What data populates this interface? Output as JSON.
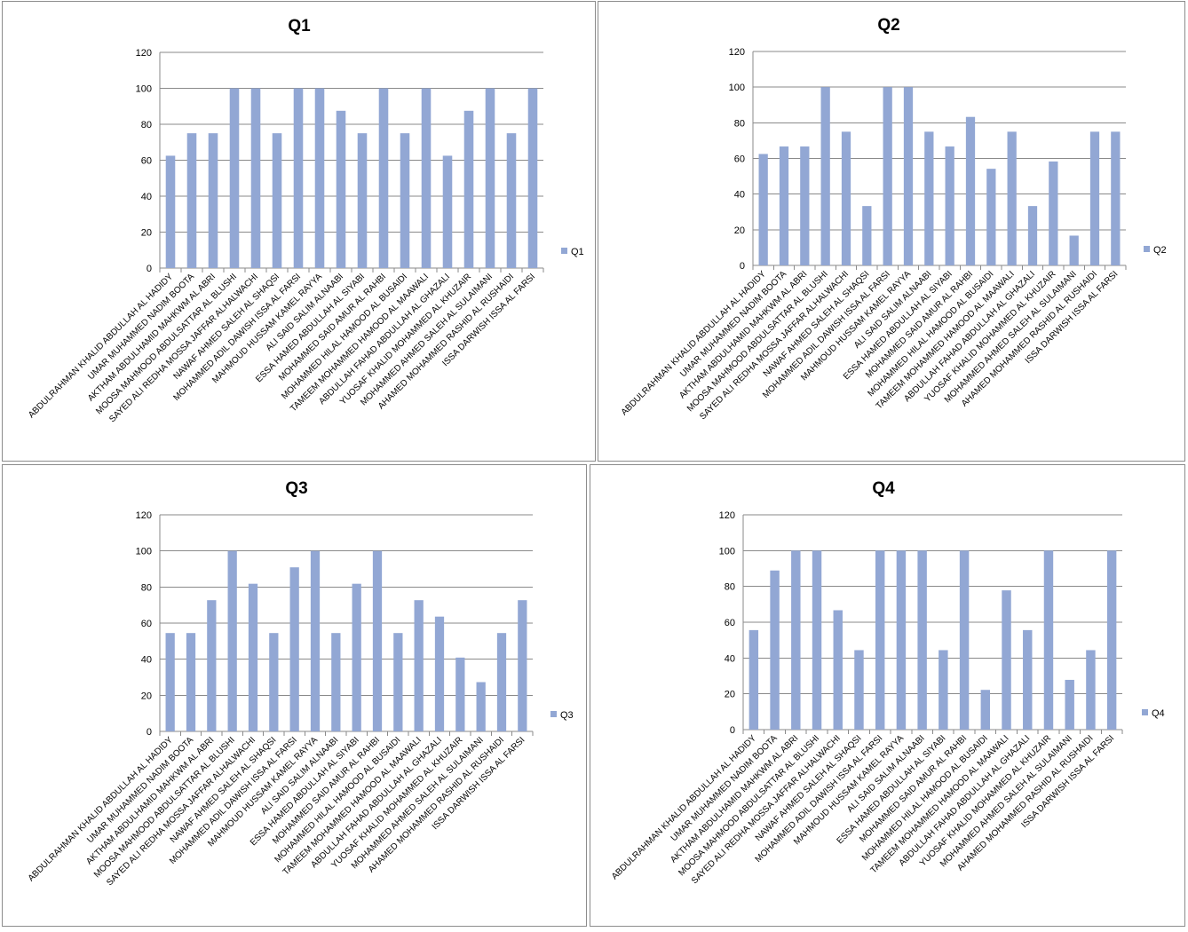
{
  "colors": {
    "bar": "#92A7D4",
    "grid": "#8a8a8a",
    "axis": "#8a8a8a"
  },
  "chart_data": [
    {
      "type": "bar",
      "title": "Q1",
      "ylim": [
        0,
        120
      ],
      "yticks": [
        0,
        20,
        40,
        60,
        80,
        100,
        120
      ],
      "grid": true,
      "legend_position": "right",
      "categories": [
        "ABDULRAHMAN KHALID ABDULLAH AL HADIDY",
        "UMAR MUHAMMED NADIM BOOTA",
        "AKTHAM ABDULHAMID MAHKWM AL ABRI",
        "MOOSA MAHMOOD ABDULSATTAR AL BLUSHI",
        "SAYED ALI REDHA MOSSA JAFFAR ALHALWACHI",
        "NAWAF AHMED SALEH AL SHAQSI",
        "MOHAMMED ADIL DAWISH ISSA AL FARSI",
        "MAHMOUD HUSSAM KAMEL RAYYA",
        "ALI SAID SALIM ALNAABI",
        "ESSA HAMED ABDULLAH AL SIYABI",
        "MOHAMMED SAID AMUR AL RAHBI",
        "MOHAMMED HILAL HAMOOD AL BUSAIDI",
        "TAMEEM MOHAMMED HAMOOD AL MAAWALI",
        "ABDULLAH FAHAD ABDULLAH AL GHAZALI",
        "YUOSAF KHALID MOHAMMED AL KHUZAIR",
        "MOHAMMED AHMED SALEH AL SULAIMANI",
        "AHAMED MOHAMMED RASHID AL RUSHAIDI",
        "ISSA DARWISH ISSA AL FARSI"
      ],
      "series": [
        {
          "name": "Q1",
          "values": [
            62.5,
            75,
            75,
            100,
            100,
            75,
            100,
            100,
            87.5,
            75,
            100,
            75,
            100,
            62.5,
            87.5,
            100,
            75,
            100
          ]
        }
      ]
    },
    {
      "type": "bar",
      "title": "Q2",
      "ylim": [
        0,
        120
      ],
      "yticks": [
        0,
        20,
        40,
        60,
        80,
        100,
        120
      ],
      "grid": true,
      "legend_position": "right",
      "categories": [
        "ABDULRAHMAN KHALID ABDULLAH AL HADIDY",
        "UMAR MUHAMMED NADIM BOOTA",
        "AKTHAM ABDULHAMID MAHKWM AL ABRI",
        "MOOSA MAHMOOD ABDULSATTAR AL BLUSHI",
        "SAYED ALI REDHA MOSSA JAFFAR ALHALWACHI",
        "NAWAF AHMED SALEH AL SHAQSI",
        "MOHAMMED ADIL DAWISH ISSA AL FARSI",
        "MAHMOUD HUSSAM KAMEL RAYYA",
        "ALI SAID SALIM ALNAABI",
        "ESSA HAMED ABDULLAH AL SIYABI",
        "MOHAMMED SAID AMUR AL RAHBI",
        "MOHAMMED HILAL HAMOOD AL BUSAIDI",
        "TAMEEM MOHAMMED HAMOOD AL MAAWALI",
        "ABDULLAH FAHAD ABDULLAH AL GHAZALI",
        "YUOSAF KHALID MOHAMMED AL KHUZAIR",
        "MOHAMMED AHMED SALEH AL SULAIMANI",
        "AHAMED MOHAMMED RASHID AL RUSHAIDI",
        "ISSA DARWISH ISSA AL FARSI"
      ],
      "series": [
        {
          "name": "Q2",
          "values": [
            62.5,
            66.7,
            66.7,
            100,
            75,
            33.3,
            100,
            100,
            75,
            66.7,
            83.3,
            54.2,
            75,
            33.3,
            58.3,
            16.7,
            75,
            75
          ]
        }
      ]
    },
    {
      "type": "bar",
      "title": "Q3",
      "ylim": [
        0,
        120
      ],
      "yticks": [
        0,
        20,
        40,
        60,
        80,
        100,
        120
      ],
      "grid": true,
      "legend_position": "right",
      "categories": [
        "ABDULRAHMAN KHALID ABDULLAH AL HADIDY",
        "UMAR MUHAMMED NADIM BOOTA",
        "AKTHAM ABDULHAMID MAHKWM AL ABRI",
        "MOOSA MAHMOOD ABDULSATTAR AL BLUSHI",
        "SAYED ALI REDHA MOSSA JAFFAR ALHALWACHI",
        "NAWAF AHMED SALEH AL SHAQSI",
        "MOHAMMED ADIL DAWISH ISSA AL FARSI",
        "MAHMOUD HUSSAM KAMEL RAYYA",
        "ALI SAID SALIM ALNAABI",
        "ESSA HAMED ABDULLAH AL SIYABI",
        "MOHAMMED SAID AMUR AL RAHBI",
        "MOHAMMED HILAL HAMOOD AL BUSAIDI",
        "TAMEEM MOHAMMED HAMOOD AL MAAWALI",
        "ABDULLAH FAHAD ABDULLAH AL GHAZALI",
        "YUOSAF KHALID MOHAMMED AL KHUZAIR",
        "MOHAMMED AHMED SALEH AL SULAIMANI",
        "AHAMED MOHAMMED RASHID AL RUSHAIDI",
        "ISSA DARWISH ISSA AL FARSI"
      ],
      "series": [
        {
          "name": "Q3",
          "values": [
            54.5,
            54.5,
            72.7,
            100,
            81.8,
            54.5,
            90.9,
            100,
            54.5,
            81.8,
            100,
            54.5,
            72.7,
            63.6,
            40.9,
            27.3,
            54.5,
            72.7
          ]
        }
      ]
    },
    {
      "type": "bar",
      "title": "Q4",
      "ylim": [
        0,
        120
      ],
      "yticks": [
        0,
        20,
        40,
        60,
        80,
        100,
        120
      ],
      "grid": true,
      "legend_position": "right",
      "categories": [
        "ABDULRAHMAN KHALID ABDULLAH AL HADIDY",
        "UMAR MUHAMMED NADIM BOOTA",
        "AKTHAM ABDULHAMID MAHKWM AL ABRI",
        "MOOSA MAHMOOD ABDULSATTAR AL BLUSHI",
        "SAYED ALI REDHA MOSSA JAFFAR ALHALWACHI",
        "NAWAF AHMED SALEH AL SHAQSI",
        "MOHAMMED ADIL DAWISH ISSA AL FARSI",
        "MAHMOUD HUSSAM KAMEL RAYYA",
        "ALI SAID SALIM ALNAABI",
        "ESSA HAMED ABDULLAH AL SIYABI",
        "MOHAMMED SAID AMUR AL RAHBI",
        "MOHAMMED HILAL HAMOOD AL BUSAIDI",
        "TAMEEM MOHAMMED HAMOOD AL MAAWALI",
        "ABDULLAH FAHAD ABDULLAH AL GHAZALI",
        "YUOSAF KHALID MOHAMMED AL KHUZAIR",
        "MOHAMMED AHMED SALEH AL SULAIMANI",
        "AHAMED MOHAMMED RASHID AL RUSHAIDI",
        "ISSA DARWISH ISSA AL FARSI"
      ],
      "series": [
        {
          "name": "Q4",
          "values": [
            55.6,
            88.9,
            100,
            100,
            66.7,
            44.4,
            100,
            100,
            100,
            44.4,
            100,
            22.2,
            77.8,
            55.6,
            100,
            27.8,
            44.4,
            100
          ]
        }
      ]
    }
  ]
}
